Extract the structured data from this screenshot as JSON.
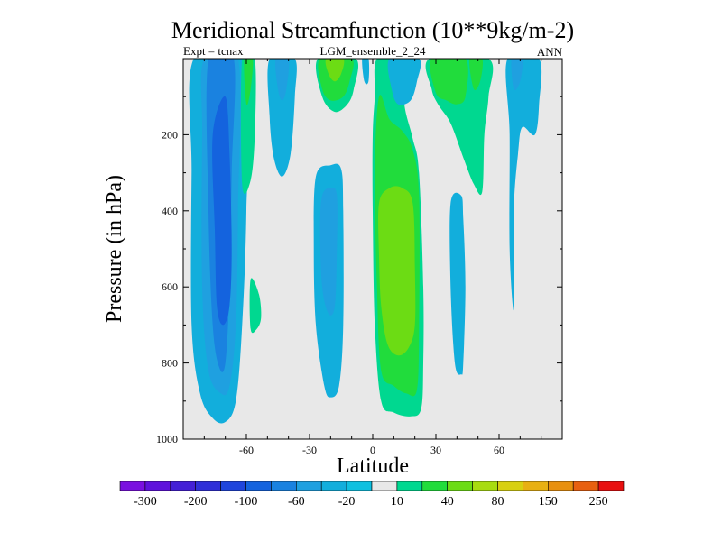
{
  "chart_data": {
    "type": "heatmap",
    "subtype": "filled-contour",
    "title": "Meridional Streamfunction (10**9kg/m-2)",
    "left_label": "Expt = tcnax",
    "center_label": "LGM_ensemble_2_24",
    "right_label": "ANN",
    "xlabel": "Latitude",
    "ylabel": "Pressure (in hPa)",
    "xlim": [
      -90,
      90
    ],
    "ylim": [
      1000,
      0
    ],
    "x_ticks": [
      -60,
      -30,
      0,
      30,
      60
    ],
    "x_tick_labels": [
      "-60",
      "-30",
      "0",
      "30",
      "60"
    ],
    "y_ticks": [
      200,
      400,
      600,
      800,
      1000
    ],
    "y_tick_labels": [
      "200",
      "400",
      "600",
      "800",
      "1000"
    ],
    "background_color": "#e8e8e8",
    "levels": [
      -300,
      -250,
      -200,
      -150,
      -100,
      -80,
      -60,
      -40,
      -20,
      -10,
      10,
      20,
      40,
      60,
      80,
      100,
      150,
      200,
      250,
      300
    ],
    "colorbar": {
      "colors": [
        "#7a10e0",
        "#5f12dc",
        "#4420d6",
        "#3030d8",
        "#1f45dc",
        "#1463de",
        "#1a82e0",
        "#1fa0e0",
        "#12aedc",
        "#0fc0e0",
        "#e8e8e8",
        "#00d890",
        "#21dc3c",
        "#6cdc14",
        "#a8dc10",
        "#d8d010",
        "#e8b012",
        "#e8900f",
        "#e86010",
        "#e81010"
      ],
      "tick_labels": [
        "-300",
        "-200",
        "-100",
        "-60",
        "-20",
        "10",
        "40",
        "80",
        "150",
        "250"
      ]
    },
    "regions": [
      {
        "level": -20,
        "color": "#12aedc",
        "points": [
          [
            -85,
            0
          ],
          [
            -60,
            0
          ],
          [
            -60,
            400
          ],
          [
            -62,
            700
          ],
          [
            -65,
            900
          ],
          [
            -70,
            955
          ],
          [
            -76,
            945
          ],
          [
            -82,
            880
          ],
          [
            -86,
            700
          ],
          [
            -86,
            300
          ]
        ]
      },
      {
        "level": -40,
        "color": "#1fa0e0",
        "points": [
          [
            -80,
            0
          ],
          [
            -64,
            0
          ],
          [
            -64,
            400
          ],
          [
            -65,
            700
          ],
          [
            -68,
            860
          ],
          [
            -72,
            880
          ],
          [
            -78,
            820
          ],
          [
            -81,
            600
          ],
          [
            -81,
            200
          ]
        ]
      },
      {
        "level": -60,
        "color": "#1a82e0",
        "points": [
          [
            -78,
            0
          ],
          [
            -66,
            0
          ],
          [
            -67,
            300
          ],
          [
            -68,
            600
          ],
          [
            -70,
            800
          ],
          [
            -73,
            810
          ],
          [
            -76,
            700
          ],
          [
            -78,
            400
          ]
        ]
      },
      {
        "level": -80,
        "color": "#1463de",
        "points": [
          [
            -76,
            200
          ],
          [
            -70,
            100
          ],
          [
            -68,
            250
          ],
          [
            -67,
            500
          ],
          [
            -68,
            650
          ],
          [
            -71,
            700
          ],
          [
            -74,
            650
          ],
          [
            -75,
            450
          ]
        ]
      },
      {
        "level": 10,
        "color": "#00d890",
        "points": [
          [
            -62,
            0
          ],
          [
            -56,
            0
          ],
          [
            -56,
            200
          ],
          [
            -58,
            320
          ],
          [
            -62,
            330
          ]
        ]
      },
      {
        "level": 20,
        "color": "#21dc3c",
        "points": [
          [
            -61,
            0
          ],
          [
            -57,
            0
          ],
          [
            -58,
            80
          ],
          [
            -60,
            120
          ]
        ]
      },
      {
        "level": 10,
        "color": "#00d890",
        "points": [
          [
            -58,
            580
          ],
          [
            -54,
            620
          ],
          [
            -53,
            680
          ],
          [
            -55,
            710
          ],
          [
            -58,
            710
          ]
        ]
      },
      {
        "level": -20,
        "color": "#12aedc",
        "points": [
          [
            -49,
            0
          ],
          [
            -37,
            0
          ],
          [
            -37,
            100
          ],
          [
            -39,
            250
          ],
          [
            -43,
            310
          ],
          [
            -47,
            260
          ],
          [
            -49,
            150
          ]
        ]
      },
      {
        "level": -40,
        "color": "#1fa0e0",
        "points": [
          [
            -46,
            0
          ],
          [
            -40,
            0
          ],
          [
            -41,
            80
          ],
          [
            -43,
            110
          ],
          [
            -45,
            80
          ]
        ]
      },
      {
        "level": -20,
        "color": "#12aedc",
        "points": [
          [
            -27,
            310
          ],
          [
            -20,
            280
          ],
          [
            -15,
            290
          ],
          [
            -14,
            400
          ],
          [
            -14,
            700
          ],
          [
            -16,
            860
          ],
          [
            -20,
            890
          ],
          [
            -23,
            860
          ],
          [
            -27,
            700
          ],
          [
            -28,
            500
          ]
        ]
      },
      {
        "level": -40,
        "color": "#1fa0e0",
        "points": [
          [
            -24,
            360
          ],
          [
            -20,
            340
          ],
          [
            -17,
            360
          ],
          [
            -17,
            500
          ],
          [
            -18,
            650
          ],
          [
            -21,
            670
          ],
          [
            -24,
            600
          ],
          [
            -25,
            450
          ]
        ]
      },
      {
        "level": 10,
        "color": "#00d890",
        "points": [
          [
            -26,
            0
          ],
          [
            -8,
            0
          ],
          [
            -9,
            80
          ],
          [
            -12,
            120
          ],
          [
            -18,
            140
          ],
          [
            -24,
            100
          ]
        ]
      },
      {
        "level": 20,
        "color": "#21dc3c",
        "points": [
          [
            -25,
            0
          ],
          [
            -10,
            0
          ],
          [
            -11,
            60
          ],
          [
            -14,
            100
          ],
          [
            -20,
            110
          ],
          [
            -24,
            80
          ]
        ]
      },
      {
        "level": 40,
        "color": "#6cdc14",
        "points": [
          [
            -22,
            0
          ],
          [
            -14,
            0
          ],
          [
            -15,
            40
          ],
          [
            -18,
            60
          ],
          [
            -21,
            40
          ]
        ]
      },
      {
        "level": -20,
        "color": "#12aedc",
        "points": [
          [
            -5,
            0
          ],
          [
            -2,
            0
          ],
          [
            -2,
            60
          ],
          [
            -4,
            60
          ]
        ]
      },
      {
        "level": 10,
        "color": "#00d890",
        "points": [
          [
            2,
            0
          ],
          [
            14,
            0
          ],
          [
            15,
            120
          ],
          [
            19,
            210
          ],
          [
            22,
            300
          ],
          [
            24,
            600
          ],
          [
            24,
            800
          ],
          [
            23,
            920
          ],
          [
            18,
            940
          ],
          [
            10,
            930
          ],
          [
            4,
            900
          ],
          [
            1,
            700
          ],
          [
            0,
            400
          ],
          [
            0,
            200
          ],
          [
            1,
            100
          ]
        ]
      },
      {
        "level": 20,
        "color": "#21dc3c",
        "points": [
          [
            3,
            100
          ],
          [
            8,
            160
          ],
          [
            14,
            190
          ],
          [
            19,
            240
          ],
          [
            22,
            360
          ],
          [
            22,
            700
          ],
          [
            21,
            870
          ],
          [
            16,
            880
          ],
          [
            10,
            860
          ],
          [
            4,
            820
          ],
          [
            2,
            600
          ],
          [
            1,
            300
          ]
        ]
      },
      {
        "level": 40,
        "color": "#6cdc14",
        "points": [
          [
            3,
            380
          ],
          [
            8,
            340
          ],
          [
            14,
            340
          ],
          [
            19,
            380
          ],
          [
            20,
            550
          ],
          [
            20,
            700
          ],
          [
            17,
            760
          ],
          [
            12,
            780
          ],
          [
            7,
            750
          ],
          [
            4,
            650
          ],
          [
            3,
            520
          ]
        ]
      },
      {
        "level": -20,
        "color": "#12aedc",
        "points": [
          [
            8,
            0
          ],
          [
            22,
            0
          ],
          [
            21,
            60
          ],
          [
            18,
            110
          ],
          [
            12,
            120
          ],
          [
            9,
            80
          ]
        ]
      },
      {
        "level": 10,
        "color": "#00d890",
        "points": [
          [
            27,
            0
          ],
          [
            55,
            0
          ],
          [
            55,
            100
          ],
          [
            53,
            200
          ],
          [
            52,
            350
          ],
          [
            48,
            330
          ],
          [
            43,
            260
          ],
          [
            37,
            170
          ],
          [
            31,
            120
          ],
          [
            28,
            80
          ]
        ]
      },
      {
        "level": 20,
        "color": "#21dc3c",
        "points": [
          [
            28,
            0
          ],
          [
            44,
            0
          ],
          [
            44,
            100
          ],
          [
            40,
            120
          ],
          [
            35,
            110
          ],
          [
            30,
            90
          ]
        ]
      },
      {
        "level": 20,
        "color": "#21dc3c",
        "points": [
          [
            46,
            0
          ],
          [
            52,
            0
          ],
          [
            51,
            60
          ],
          [
            48,
            80
          ]
        ]
      },
      {
        "level": -20,
        "color": "#12aedc",
        "points": [
          [
            37,
            380
          ],
          [
            42,
            360
          ],
          [
            43,
            420
          ],
          [
            44,
            600
          ],
          [
            43,
            800
          ],
          [
            42,
            830
          ],
          [
            39,
            800
          ],
          [
            37,
            600
          ]
        ]
      },
      {
        "level": -20,
        "color": "#12aedc",
        "points": [
          [
            64,
            0
          ],
          [
            79,
            0
          ],
          [
            79,
            120
          ],
          [
            77,
            200
          ],
          [
            71,
            180
          ],
          [
            69,
            250
          ],
          [
            67,
            400
          ],
          [
            67,
            660
          ],
          [
            65,
            500
          ],
          [
            65,
            200
          ]
        ]
      },
      {
        "level": -40,
        "color": "#1fa0e0",
        "points": [
          [
            66,
            0
          ],
          [
            71,
            0
          ],
          [
            70,
            60
          ],
          [
            67,
            80
          ]
        ]
      }
    ]
  }
}
